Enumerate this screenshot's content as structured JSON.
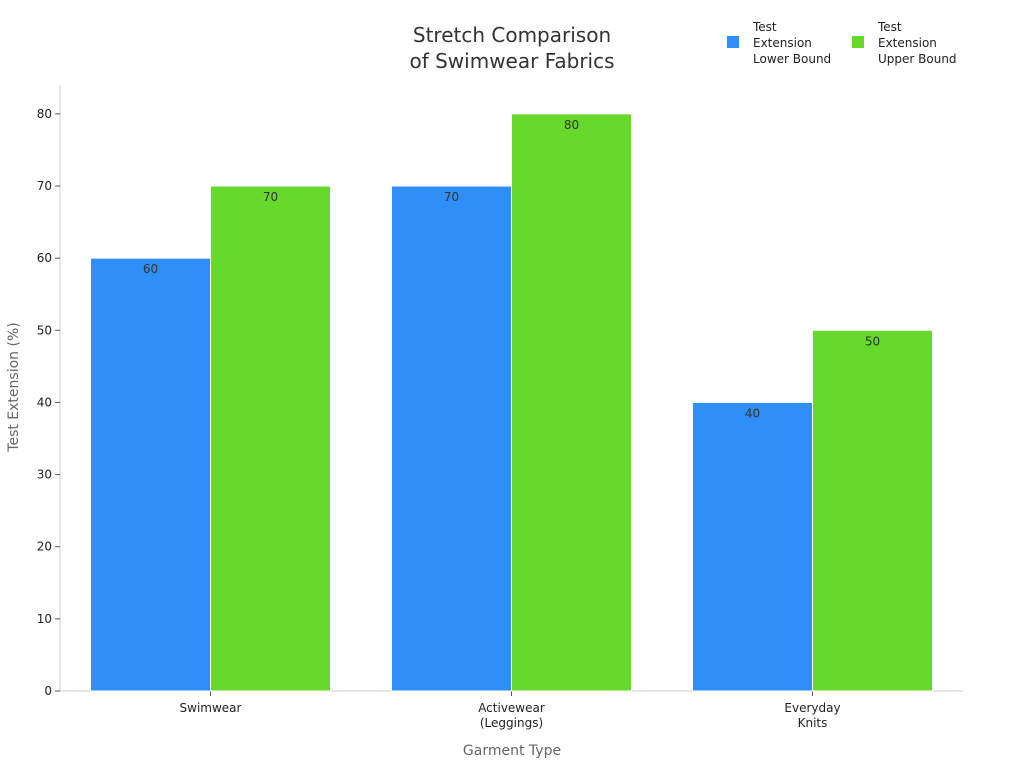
{
  "chart_data": {
    "type": "bar",
    "title": [
      "Stretch Comparison",
      "of Swimwear Fabrics"
    ],
    "xlabel": "Garment Type",
    "ylabel": "Test Extension (%)",
    "categories": [
      [
        "Swimwear"
      ],
      [
        "Activewear",
        "(Leggings)"
      ],
      [
        "Everyday",
        "Knits"
      ]
    ],
    "series": [
      {
        "name": [
          "Test",
          "Extension",
          "Lower Bound"
        ],
        "color": "#2f8ff8",
        "values": [
          60,
          70,
          40
        ]
      },
      {
        "name": [
          "Test",
          "Extension",
          "Upper Bound"
        ],
        "color": "#66d92a",
        "values": [
          70,
          80,
          50
        ]
      }
    ],
    "ylim": [
      0,
      84
    ],
    "yticks": [
      0,
      10,
      20,
      30,
      40,
      50,
      60,
      70,
      80
    ],
    "grid": false,
    "legend": "top-right",
    "data_labels": true
  }
}
